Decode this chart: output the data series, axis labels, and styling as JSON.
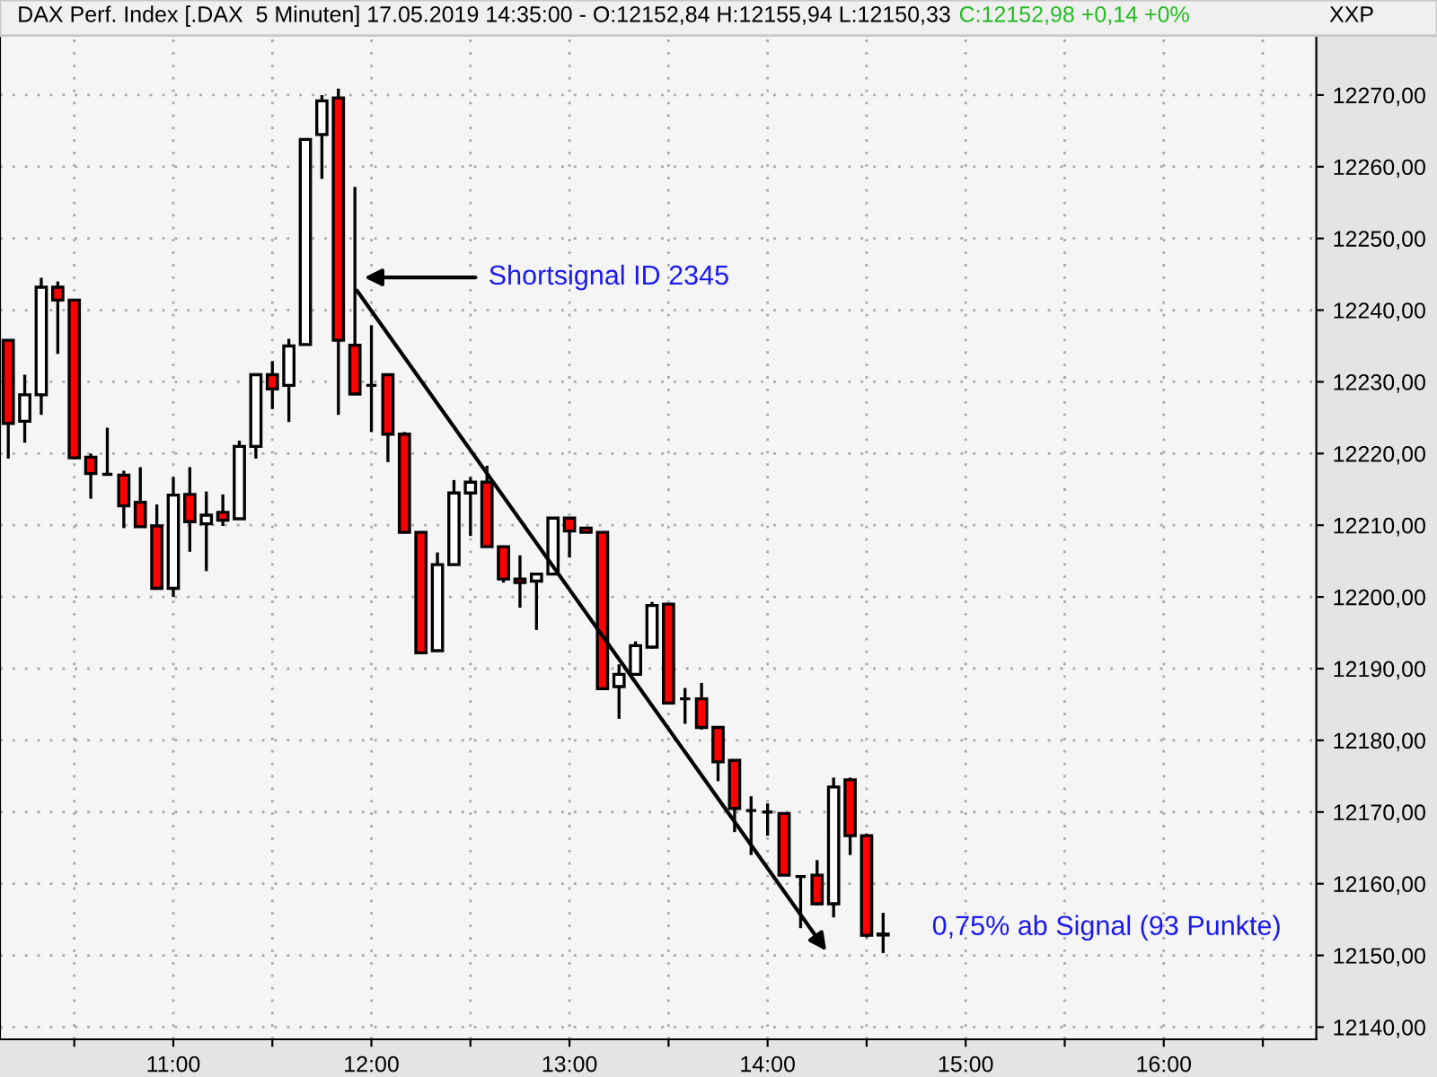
{
  "chart_data": {
    "type": "candlestick",
    "title": "DAX Perf. Index [.DAX  5 Minuten] 17.05.2019 14:35:00 - O:12152,84 H:12155,94 L:12150,33",
    "subtitle": "C:12152,98 +0,14 +0%",
    "ylabel": "XXP",
    "x": [
      10.1667,
      10.25,
      10.3333,
      10.4167,
      10.5,
      10.5833,
      10.6667,
      10.75,
      10.8333,
      10.9167,
      11,
      11.0833,
      11.1667,
      11.25,
      11.3333,
      11.4167,
      11.5,
      11.5833,
      11.6667,
      11.75,
      11.8333,
      11.9167,
      12,
      12.0833,
      12.1667,
      12.25,
      12.3333,
      12.4167,
      12.5,
      12.5833,
      12.6667,
      12.75,
      12.8333,
      12.9167,
      13,
      13.0833,
      13.1667,
      13.25,
      13.3333,
      13.4167,
      13.5,
      13.5833,
      13.6667,
      13.75,
      13.8333,
      13.9167,
      14,
      14.0833,
      14.1667,
      14.25,
      14.3333,
      14.4167,
      14.5,
      14.5833
    ],
    "ohlc": [
      [
        12235.8,
        12235.8,
        12219.3,
        12224.2
      ],
      [
        12224.5,
        12231,
        12221.5,
        12228.2
      ],
      [
        12228.2,
        12244.5,
        12225.4,
        12243.2
      ],
      [
        12243.2,
        12244,
        12233.9,
        12241.4
      ],
      [
        12241.4,
        12241.4,
        12219.2,
        12219.4
      ],
      [
        12219.5,
        12220,
        12213.7,
        12217.2
      ],
      [
        12217.1,
        12223.6,
        12217.1,
        12217.1
      ],
      [
        12217,
        12217.6,
        12209.6,
        12212.7
      ],
      [
        12213.2,
        12218.1,
        12209.8,
        12209.8
      ],
      [
        12209.9,
        12212.9,
        12201,
        12201.2
      ],
      [
        12201.2,
        12216.7,
        12200,
        12214.2
      ],
      [
        12214.3,
        12218.1,
        12206.3,
        12210.5
      ],
      [
        12210.2,
        12214.7,
        12203.6,
        12211.4
      ],
      [
        12211.8,
        12214.3,
        12209.9,
        12210.7
      ],
      [
        12210.9,
        12221.8,
        12210.9,
        12221
      ],
      [
        12221,
        12231,
        12219.3,
        12231
      ],
      [
        12231,
        12232.9,
        12226.2,
        12229
      ],
      [
        12229.5,
        12236,
        12224.4,
        12235
      ],
      [
        12235.2,
        12263.8,
        12235.2,
        12263.8
      ],
      [
        12264.5,
        12270,
        12258.3,
        12269.2
      ],
      [
        12269.6,
        12270.9,
        12225.4,
        12235.8
      ],
      [
        12235.1,
        12257.2,
        12228.3,
        12228.3
      ],
      [
        12229.5,
        12237.9,
        12223,
        12229.5
      ],
      [
        12231,
        12231.1,
        12218.8,
        12222.7
      ],
      [
        12222.7,
        12223,
        12209,
        12209
      ],
      [
        12209,
        12209,
        12192,
        12192.2
      ],
      [
        12192.5,
        12206.2,
        12192.5,
        12204.5
      ],
      [
        12204.5,
        12216.3,
        12204.5,
        12214.5
      ],
      [
        12214.5,
        12216.7,
        12208.5,
        12216
      ],
      [
        12216,
        12218.3,
        12207,
        12207
      ],
      [
        12207,
        12207,
        12202,
        12202.5
      ],
      [
        12202.5,
        12205.8,
        12198.5,
        12202
      ],
      [
        12202.2,
        12203.2,
        12195.4,
        12203.2
      ],
      [
        12203.2,
        12211,
        12203.2,
        12211
      ],
      [
        12211,
        12211,
        12205.5,
        12209.2
      ],
      [
        12209.6,
        12209.6,
        12209,
        12209
      ],
      [
        12209,
        12209,
        12187.2,
        12187.2
      ],
      [
        12187.5,
        12190.6,
        12183,
        12189.2
      ],
      [
        12189.2,
        12193.8,
        12189.2,
        12193.2
      ],
      [
        12193,
        12199.3,
        12192.8,
        12198.8
      ],
      [
        12199,
        12199,
        12185.2,
        12185.2
      ],
      [
        12185.8,
        12187.3,
        12182.3,
        12185.8
      ],
      [
        12185.8,
        12188,
        12181.5,
        12181.8
      ],
      [
        12181.8,
        12181.8,
        12174.3,
        12177
      ],
      [
        12177.2,
        12177.2,
        12167.2,
        12170.5
      ],
      [
        12170.2,
        12172.2,
        12164,
        12170.2
      ],
      [
        12170,
        12171.2,
        12166.7,
        12170
      ],
      [
        12169.8,
        12169.8,
        12161.2,
        12161.2
      ],
      [
        12161,
        12161,
        12153.8,
        12161
      ],
      [
        12161.2,
        12163.3,
        12157,
        12157.2
      ],
      [
        12157.2,
        12174.8,
        12155.3,
        12173.5
      ],
      [
        12174.5,
        12174.8,
        12164,
        12166.7
      ],
      [
        12166.7,
        12167,
        12152.5,
        12152.8
      ],
      [
        12152.84,
        12155.94,
        12150.33,
        12152.98
      ]
    ],
    "colors": [
      "#ff0000",
      "#ffffff",
      "#ffffff",
      "#ff0000",
      "#ff0000",
      "#ff0000",
      "#000000",
      "#ff0000",
      "#ff0000",
      "#ff0000",
      "#ffffff",
      "#ff0000",
      "#ffffff",
      "#ff0000",
      "#ffffff",
      "#ffffff",
      "#ff0000",
      "#ffffff",
      "#ffffff",
      "#ffffff",
      "#ff0000",
      "#ff0000",
      "#000000",
      "#ff0000",
      "#ff0000",
      "#ff0000",
      "#ffffff",
      "#ffffff",
      "#ffffff",
      "#ff0000",
      "#ff0000",
      "#ff0000",
      "#ffffff",
      "#ffffff",
      "#ff0000",
      "#ff0000",
      "#ff0000",
      "#ffffff",
      "#ffffff",
      "#ffffff",
      "#ff0000",
      "#000000",
      "#ff0000",
      "#ff0000",
      "#ff0000",
      "#000000",
      "#000000",
      "#ff0000",
      "#000000",
      "#ff0000",
      "#ffffff",
      "#ff0000",
      "#ff0000",
      "#ffffff"
    ],
    "xlim": [
      10.125,
      16.77
    ],
    "xticks": [
      {
        "value": 10.5,
        "label": null
      },
      {
        "value": 11,
        "label": "11:00"
      },
      {
        "value": 11.5,
        "label": null
      },
      {
        "value": 12,
        "label": "12:00"
      },
      {
        "value": 12.5,
        "label": null
      },
      {
        "value": 13,
        "label": "13:00"
      },
      {
        "value": 13.5,
        "label": null
      },
      {
        "value": 14,
        "label": "14:00"
      },
      {
        "value": 14.5,
        "label": null
      },
      {
        "value": 15,
        "label": "15:00"
      },
      {
        "value": 15.5,
        "label": null
      },
      {
        "value": 16,
        "label": "16:00"
      },
      {
        "value": 16.5,
        "label": null
      }
    ],
    "ylim": [
      12138.3,
      12278.3
    ],
    "yticks": [
      {
        "value": 12140,
        "label": "12140,00"
      },
      {
        "value": 12150,
        "label": "12150,00"
      },
      {
        "value": 12160,
        "label": "12160,00"
      },
      {
        "value": 12170,
        "label": "12170,00"
      },
      {
        "value": 12180,
        "label": "12180,00"
      },
      {
        "value": 12190,
        "label": "12190,00"
      },
      {
        "value": 12200,
        "label": "12200,00"
      },
      {
        "value": 12210,
        "label": "12210,00"
      },
      {
        "value": 12220,
        "label": "12220,00"
      },
      {
        "value": 12230,
        "label": "12230,00"
      },
      {
        "value": 12240,
        "label": "12240,00"
      },
      {
        "value": 12250,
        "label": "12250,00"
      },
      {
        "value": 12260,
        "label": "12260,00"
      },
      {
        "value": 12270,
        "label": "12270,00"
      }
    ],
    "grid": true,
    "annotations": [
      "Shortsignal ID 2345",
      "0,75% ab Signal (93 Punkte)"
    ]
  }
}
